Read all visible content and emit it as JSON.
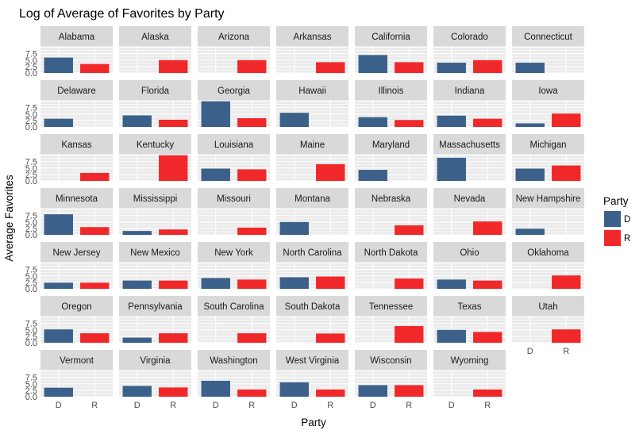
{
  "chart_data": {
    "type": "bar",
    "faceted": true,
    "title": "Log of Average of Favorites by Party",
    "xlabel": "Party",
    "ylabel": "Average Favorites",
    "categories": [
      "D",
      "R"
    ],
    "y_ticks": [
      "0.0",
      "2.5",
      "5.0",
      "7.5"
    ],
    "ylim": [
      0,
      10.5
    ],
    "legend": {
      "title": "Party",
      "position": "right",
      "entries": [
        {
          "key": "D",
          "label": "D",
          "color": "#3b6089"
        },
        {
          "key": "R",
          "label": "R",
          "color": "#f0282a"
        }
      ]
    },
    "panels": [
      {
        "state": "Alabama",
        "D": 6.0,
        "R": 3.5
      },
      {
        "state": "Alaska",
        "D": null,
        "R": 5.0
      },
      {
        "state": "Arizona",
        "D": null,
        "R": 5.0
      },
      {
        "state": "Arkansas",
        "D": null,
        "R": 4.2
      },
      {
        "state": "California",
        "D": 7.0,
        "R": 4.2
      },
      {
        "state": "Colorado",
        "D": 4.0,
        "R": 5.0
      },
      {
        "state": "Connecticut",
        "D": 4.0,
        "R": null
      },
      {
        "state": "Delaware",
        "D": 3.2,
        "R": null
      },
      {
        "state": "Florida",
        "D": 4.5,
        "R": 2.8
      },
      {
        "state": "Georgia",
        "D": 10.0,
        "R": 3.4
      },
      {
        "state": "Hawaii",
        "D": 5.5,
        "R": null
      },
      {
        "state": "Illinois",
        "D": 3.8,
        "R": 2.7
      },
      {
        "state": "Indiana",
        "D": 4.4,
        "R": 3.2
      },
      {
        "state": "Iowa",
        "D": 1.4,
        "R": 5.2
      },
      {
        "state": "Kansas",
        "D": null,
        "R": 3.1
      },
      {
        "state": "Kentucky",
        "D": null,
        "R": 10.0
      },
      {
        "state": "Louisiana",
        "D": 4.8,
        "R": 4.5
      },
      {
        "state": "Maine",
        "D": null,
        "R": 6.5
      },
      {
        "state": "Maryland",
        "D": 4.3,
        "R": null
      },
      {
        "state": "Massachusetts",
        "D": 9.0,
        "R": null
      },
      {
        "state": "Michigan",
        "D": 4.8,
        "R": 6.0
      },
      {
        "state": "Minnesota",
        "D": 8.0,
        "R": 3.0
      },
      {
        "state": "Mississippi",
        "D": 1.5,
        "R": 2.1
      },
      {
        "state": "Missouri",
        "D": null,
        "R": 2.8
      },
      {
        "state": "Montana",
        "D": 5.0,
        "R": null
      },
      {
        "state": "Nebraska",
        "D": null,
        "R": 3.7
      },
      {
        "state": "Nevada",
        "D": null,
        "R": 5.2
      },
      {
        "state": "New Hampshire",
        "D": 2.4,
        "R": null
      },
      {
        "state": "New Jersey",
        "D": 2.4,
        "R": 2.4
      },
      {
        "state": "New Mexico",
        "D": 3.2,
        "R": 3.2
      },
      {
        "state": "New York",
        "D": 4.2,
        "R": 3.6
      },
      {
        "state": "North Carolina",
        "D": 4.5,
        "R": 4.8
      },
      {
        "state": "North Dakota",
        "D": null,
        "R": 4.0
      },
      {
        "state": "Ohio",
        "D": 3.6,
        "R": 3.2
      },
      {
        "state": "Oklahoma",
        "D": null,
        "R": 5.2
      },
      {
        "state": "Oregon",
        "D": 5.2,
        "R": 3.7
      },
      {
        "state": "Pennsylvania",
        "D": 2.0,
        "R": 3.7
      },
      {
        "state": "South Carolina",
        "D": null,
        "R": 3.7
      },
      {
        "state": "South Dakota",
        "D": null,
        "R": 3.6
      },
      {
        "state": "Tennessee",
        "D": null,
        "R": 6.5
      },
      {
        "state": "Texas",
        "D": 5.0,
        "R": 4.2
      },
      {
        "state": "Utah",
        "D": null,
        "R": 5.2
      },
      {
        "state": "Vermont",
        "D": 3.5,
        "R": null
      },
      {
        "state": "Virginia",
        "D": 4.2,
        "R": 3.6
      },
      {
        "state": "Washington",
        "D": 6.2,
        "R": 2.8
      },
      {
        "state": "West Virginia",
        "D": 5.6,
        "R": 2.8
      },
      {
        "state": "Wisconsin",
        "D": 4.5,
        "R": 4.5
      },
      {
        "state": "Wyoming",
        "D": null,
        "R": 2.8
      }
    ]
  }
}
